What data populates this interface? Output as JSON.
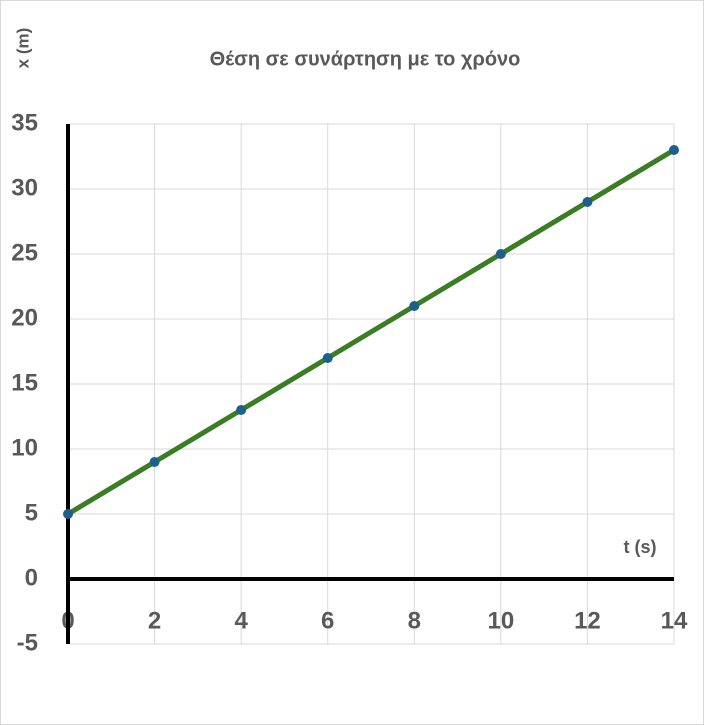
{
  "chart_data": {
    "type": "line",
    "title": "Θέση σε συνάρτηση με το χρόνο",
    "x_label": "t (s)",
    "y_label": "x (m)",
    "x": [
      0,
      2,
      4,
      6,
      8,
      10,
      12,
      14
    ],
    "series": [
      {
        "name": "x (m)",
        "color": "#3a7d22",
        "marker_color": "#1f5f8b",
        "values": [
          5,
          9,
          13,
          17,
          21,
          25,
          29,
          33
        ]
      }
    ],
    "xlim": [
      0,
      14
    ],
    "xticks": [
      0,
      2,
      4,
      6,
      8,
      10,
      12,
      14
    ],
    "ylim": [
      -5,
      35
    ],
    "yticks": [
      -5,
      0,
      5,
      10,
      15,
      20,
      25,
      30,
      35
    ],
    "grid": true,
    "legend": false
  }
}
